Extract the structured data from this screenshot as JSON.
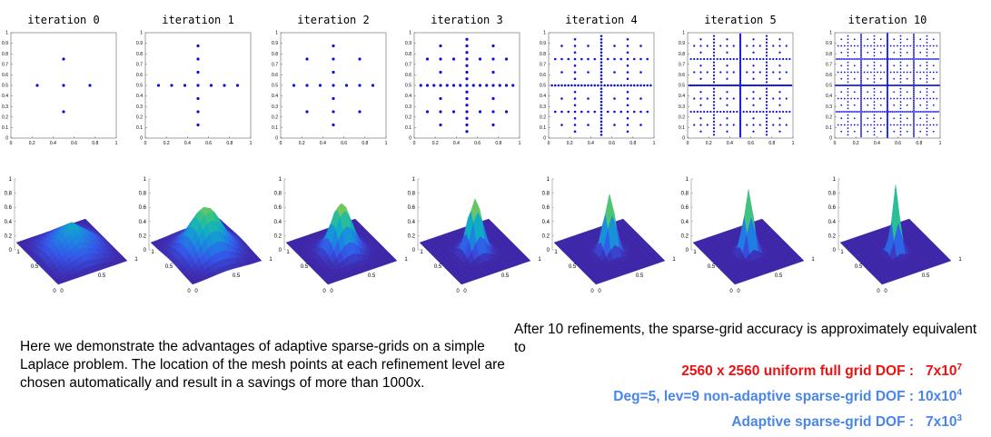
{
  "panels": [
    {
      "title": "iteration 0"
    },
    {
      "title": "iteration 1"
    },
    {
      "title": "iteration 2"
    },
    {
      "title": "iteration 3"
    },
    {
      "title": "iteration 4"
    },
    {
      "title": "iteration 5"
    },
    {
      "title": "iteration 10"
    }
  ],
  "scatter_axis": {
    "xticks": [
      "0",
      "0.2",
      "0.4",
      "0.6",
      "0.8",
      "1"
    ],
    "yticks": [
      "0",
      "0.1",
      "0.2",
      "0.3",
      "0.4",
      "0.5",
      "0.6",
      "0.7",
      "0.8",
      "0.9",
      "1"
    ]
  },
  "surface_axis": {
    "zticks": [
      "0",
      "0.2",
      "0.4",
      "0.6",
      "0.8",
      "1"
    ],
    "base_ticks": [
      "0.5",
      "1",
      "0",
      "0",
      "0.5",
      "1"
    ]
  },
  "colors": {
    "points": "#1010dd",
    "red_text": "#ee1111",
    "blue_text": "#4a86e8",
    "surface_low": "#3e26a8",
    "surface_high": "#f9fb0e"
  },
  "chart_data": [
    {
      "type": "scatter",
      "title": "iteration 0",
      "xlim": [
        0,
        1
      ],
      "ylim": [
        0,
        1
      ],
      "x": [
        0.25,
        0.5,
        0.75,
        0.5,
        0.5
      ],
      "y": [
        0.5,
        0.5,
        0.5,
        0.25,
        0.75
      ]
    },
    {
      "type": "scatter",
      "title": "iteration 1",
      "xlim": [
        0,
        1
      ],
      "ylim": [
        0,
        1
      ],
      "x": [
        0.125,
        0.25,
        0.375,
        0.5,
        0.625,
        0.75,
        0.875,
        0.5,
        0.5,
        0.5,
        0.5,
        0.5,
        0.5
      ],
      "y": [
        0.5,
        0.5,
        0.5,
        0.5,
        0.5,
        0.5,
        0.5,
        0.125,
        0.25,
        0.375,
        0.625,
        0.75,
        0.875
      ]
    },
    {
      "type": "scatter",
      "title": "iteration 2",
      "xlim": [
        0,
        1
      ],
      "ylim": [
        0,
        1
      ],
      "generator": "uniform",
      "level": 3
    },
    {
      "type": "scatter",
      "title": "iteration 3",
      "xlim": [
        0,
        1
      ],
      "ylim": [
        0,
        1
      ],
      "generator": "uniform",
      "level": 4
    },
    {
      "type": "scatter",
      "title": "iteration 4",
      "xlim": [
        0,
        1
      ],
      "ylim": [
        0,
        1
      ],
      "generator": "uniform",
      "level": 5
    },
    {
      "type": "scatter",
      "title": "iteration 5",
      "xlim": [
        0,
        1
      ],
      "ylim": [
        0,
        1
      ],
      "generator": "uniform",
      "level": 6
    },
    {
      "type": "scatter",
      "title": "iteration 10",
      "xlim": [
        0,
        1
      ],
      "ylim": [
        0,
        1
      ],
      "generator": "uniform",
      "level": 7
    },
    {
      "type": "surface",
      "zlim": [
        0,
        1
      ],
      "peak_width": [
        0.3,
        0.2,
        0.13,
        0.09,
        0.07,
        0.06,
        0.05
      ]
    }
  ],
  "text": {
    "description": "Here we demonstrate the advantages of adaptive sparse-grids on a simple Laplace problem. The location of the mesh points at each refinement level are chosen automatically and result in a savings of more than 1000x.",
    "after": "After 10 refinements, the sparse-grid accuracy is approximately equivalent to",
    "dof1_label": "2560 x 2560 uniform full grid DOF :",
    "dof1_mant": "7x10",
    "dof1_exp": "7",
    "dof2_label": "Deg=5, lev=9 non-adaptive sparse-grid DOF :",
    "dof2_mant": "10x10",
    "dof2_exp": "4",
    "dof3_label": "Adaptive sparse-grid DOF :",
    "dof3_mant": "7x10",
    "dof3_exp": "3"
  }
}
